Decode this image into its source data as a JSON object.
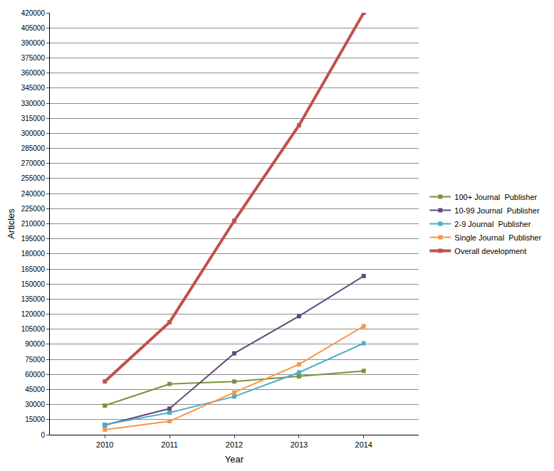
{
  "chart_data": {
    "type": "line",
    "x_label": "Year",
    "y_label": "Articles",
    "categories": [
      "2010",
      "2011",
      "2012",
      "2013",
      "2014"
    ],
    "series": [
      {
        "name": "100+ Journal  Publisher",
        "color": "#77933c",
        "values": [
          29000,
          50500,
          53000,
          58000,
          63500
        ],
        "line_style": "solid"
      },
      {
        "name": "10-99 Journal  Publisher",
        "color": "#604a7b",
        "values": [
          9500,
          26000,
          81000,
          118000,
          158000
        ],
        "line_style": "solid"
      },
      {
        "name": "2-9 Journal  Publisher",
        "color": "#4bacc6",
        "values": [
          10000,
          22000,
          38000,
          62000,
          91000
        ],
        "line_style": "solid"
      },
      {
        "name": "Single Journal  Publisher",
        "color": "#f79646",
        "values": [
          5000,
          13500,
          42000,
          70000,
          108000
        ],
        "line_style": "solid"
      },
      {
        "name": "Overall development",
        "color": "#c0504d",
        "values": [
          53000,
          112000,
          213000,
          308000,
          420000
        ],
        "line_style": "bold"
      }
    ],
    "ylim": [
      0,
      420000
    ],
    "yticks": [
      0,
      15000,
      30000,
      45000,
      60000,
      75000,
      90000,
      105000,
      120000,
      135000,
      150000,
      165000,
      180000,
      195000,
      210000,
      225000,
      240000,
      255000,
      270000,
      285000,
      300000,
      315000,
      330000,
      345000,
      360000,
      375000,
      390000,
      405000,
      420000
    ],
    "grid": true,
    "legend": "right",
    "marker": "square"
  }
}
